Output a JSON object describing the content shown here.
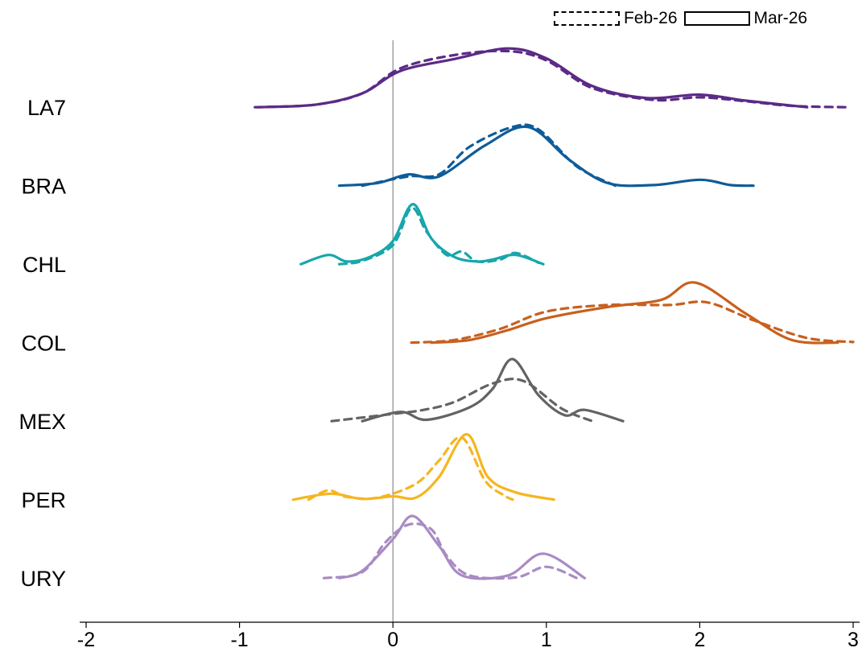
{
  "chart_data": {
    "type": "ridgeline",
    "title": "",
    "xlabel": "",
    "ylabel": "",
    "xlim": [
      -2,
      3
    ],
    "x_ticks": [
      "-2",
      "-1",
      "0",
      "1",
      "2",
      "3"
    ],
    "vertical_reference_line": 0,
    "legend": {
      "position": "top-right",
      "entries": [
        {
          "label": "Feb-26",
          "style": "dashed"
        },
        {
          "label": "Mar-26",
          "style": "solid"
        }
      ]
    },
    "rows": [
      {
        "label": "LA7",
        "color": "#5B2A86",
        "series": [
          {
            "name": "Feb-26",
            "style": "dashed",
            "points": [
              [
                -0.9,
                0.01
              ],
              [
                -0.5,
                0.05
              ],
              [
                -0.2,
                0.22
              ],
              [
                0.05,
                0.6
              ],
              [
                0.4,
                0.8
              ],
              [
                0.75,
                0.86
              ],
              [
                1.0,
                0.72
              ],
              [
                1.3,
                0.3
              ],
              [
                1.7,
                0.12
              ],
              [
                2.0,
                0.16
              ],
              [
                2.3,
                0.1
              ],
              [
                2.6,
                0.03
              ],
              [
                2.95,
                0.01
              ]
            ]
          },
          {
            "name": "Mar-26",
            "style": "solid",
            "points": [
              [
                -0.88,
                0.01
              ],
              [
                -0.5,
                0.05
              ],
              [
                -0.2,
                0.22
              ],
              [
                0.05,
                0.56
              ],
              [
                0.4,
                0.74
              ],
              [
                0.75,
                0.9
              ],
              [
                1.0,
                0.75
              ],
              [
                1.3,
                0.33
              ],
              [
                1.65,
                0.15
              ],
              [
                2.0,
                0.2
              ],
              [
                2.3,
                0.11
              ],
              [
                2.7,
                0.01
              ]
            ]
          }
        ]
      },
      {
        "label": "BRA",
        "color": "#0F5C99",
        "series": [
          {
            "name": "Feb-26",
            "style": "dashed",
            "points": [
              [
                -0.2,
                0.01
              ],
              [
                0.1,
                0.15
              ],
              [
                0.3,
                0.18
              ],
              [
                0.5,
                0.6
              ],
              [
                0.78,
                0.9
              ],
              [
                0.95,
                0.86
              ],
              [
                1.2,
                0.3
              ],
              [
                1.45,
                0.01
              ]
            ]
          },
          {
            "name": "Mar-26",
            "style": "solid",
            "points": [
              [
                -0.35,
                0.01
              ],
              [
                -0.1,
                0.05
              ],
              [
                0.1,
                0.18
              ],
              [
                0.3,
                0.15
              ],
              [
                0.6,
                0.62
              ],
              [
                0.88,
                0.9
              ],
              [
                1.15,
                0.4
              ],
              [
                1.4,
                0.05
              ],
              [
                1.7,
                0.02
              ],
              [
                2.0,
                0.1
              ],
              [
                2.2,
                0.02
              ],
              [
                2.35,
                0.01
              ]
            ]
          }
        ]
      },
      {
        "label": "CHL",
        "color": "#17A6AB",
        "series": [
          {
            "name": "Feb-26",
            "style": "dashed",
            "points": [
              [
                -0.35,
                0.01
              ],
              [
                -0.2,
                0.06
              ],
              [
                0.0,
                0.3
              ],
              [
                0.12,
                0.86
              ],
              [
                0.22,
                0.5
              ],
              [
                0.35,
                0.15
              ],
              [
                0.45,
                0.2
              ],
              [
                0.55,
                0.05
              ],
              [
                0.7,
                0.08
              ],
              [
                0.8,
                0.18
              ],
              [
                0.95,
                0.03
              ]
            ]
          },
          {
            "name": "Mar-26",
            "style": "solid",
            "points": [
              [
                -0.6,
                0.01
              ],
              [
                -0.42,
                0.15
              ],
              [
                -0.3,
                0.05
              ],
              [
                -0.15,
                0.12
              ],
              [
                0.0,
                0.36
              ],
              [
                0.13,
                0.92
              ],
              [
                0.25,
                0.4
              ],
              [
                0.4,
                0.12
              ],
              [
                0.55,
                0.05
              ],
              [
                0.65,
                0.08
              ],
              [
                0.8,
                0.15
              ],
              [
                0.98,
                0.01
              ]
            ]
          }
        ]
      },
      {
        "label": "COL",
        "color": "#C8601E",
        "series": [
          {
            "name": "Feb-26",
            "style": "dashed",
            "points": [
              [
                0.12,
                0.01
              ],
              [
                0.4,
                0.05
              ],
              [
                0.7,
                0.22
              ],
              [
                1.0,
                0.48
              ],
              [
                1.4,
                0.58
              ],
              [
                1.8,
                0.58
              ],
              [
                2.05,
                0.62
              ],
              [
                2.35,
                0.35
              ],
              [
                2.7,
                0.08
              ],
              [
                3.0,
                0.02
              ]
            ]
          },
          {
            "name": "Mar-26",
            "style": "solid",
            "points": [
              [
                0.25,
                0.01
              ],
              [
                0.5,
                0.05
              ],
              [
                0.75,
                0.2
              ],
              [
                1.0,
                0.38
              ],
              [
                1.4,
                0.55
              ],
              [
                1.75,
                0.66
              ],
              [
                1.97,
                0.92
              ],
              [
                2.3,
                0.45
              ],
              [
                2.6,
                0.05
              ],
              [
                2.9,
                0.01
              ]
            ]
          }
        ]
      },
      {
        "label": "MEX",
        "color": "#636363",
        "series": [
          {
            "name": "Feb-26",
            "style": "dashed",
            "points": [
              [
                -0.4,
                0.01
              ],
              [
                0.0,
                0.12
              ],
              [
                0.2,
                0.18
              ],
              [
                0.4,
                0.3
              ],
              [
                0.65,
                0.58
              ],
              [
                0.85,
                0.62
              ],
              [
                1.1,
                0.2
              ],
              [
                1.3,
                0.01
              ]
            ]
          },
          {
            "name": "Mar-26",
            "style": "solid",
            "points": [
              [
                -0.2,
                0.01
              ],
              [
                0.05,
                0.15
              ],
              [
                0.22,
                0.03
              ],
              [
                0.5,
                0.22
              ],
              [
                0.65,
                0.5
              ],
              [
                0.78,
                0.95
              ],
              [
                0.95,
                0.4
              ],
              [
                1.12,
                0.1
              ],
              [
                1.25,
                0.18
              ],
              [
                1.5,
                0.01
              ]
            ]
          }
        ]
      },
      {
        "label": "PER",
        "color": "#F6B520",
        "series": [
          {
            "name": "Feb-26",
            "style": "dashed",
            "points": [
              [
                -0.55,
                0.01
              ],
              [
                -0.42,
                0.15
              ],
              [
                -0.3,
                0.05
              ],
              [
                -0.1,
                0.04
              ],
              [
                0.15,
                0.25
              ],
              [
                0.3,
                0.6
              ],
              [
                0.45,
                0.95
              ],
              [
                0.6,
                0.3
              ],
              [
                0.72,
                0.08
              ],
              [
                0.78,
                0.01
              ]
            ]
          },
          {
            "name": "Mar-26",
            "style": "solid",
            "points": [
              [
                -0.65,
                0.01
              ],
              [
                -0.4,
                0.1
              ],
              [
                -0.2,
                0.02
              ],
              [
                0.0,
                0.06
              ],
              [
                0.15,
                0.04
              ],
              [
                0.3,
                0.35
              ],
              [
                0.48,
                1.0
              ],
              [
                0.62,
                0.35
              ],
              [
                0.8,
                0.12
              ],
              [
                1.05,
                0.01
              ]
            ]
          }
        ]
      },
      {
        "label": "URY",
        "color": "#A98BC4",
        "series": [
          {
            "name": "Feb-26",
            "style": "dashed",
            "points": [
              [
                -0.45,
                0.01
              ],
              [
                -0.2,
                0.1
              ],
              [
                -0.05,
                0.55
              ],
              [
                0.1,
                0.82
              ],
              [
                0.25,
                0.75
              ],
              [
                0.35,
                0.35
              ],
              [
                0.5,
                0.05
              ],
              [
                0.8,
                0.02
              ],
              [
                1.0,
                0.18
              ],
              [
                1.2,
                0.01
              ]
            ]
          },
          {
            "name": "Mar-26",
            "style": "solid",
            "points": [
              [
                -0.35,
                0.01
              ],
              [
                -0.2,
                0.12
              ],
              [
                0.0,
                0.6
              ],
              [
                0.13,
                0.95
              ],
              [
                0.3,
                0.5
              ],
              [
                0.45,
                0.05
              ],
              [
                0.75,
                0.05
              ],
              [
                0.98,
                0.38
              ],
              [
                1.25,
                0.01
              ]
            ]
          }
        ]
      }
    ]
  }
}
